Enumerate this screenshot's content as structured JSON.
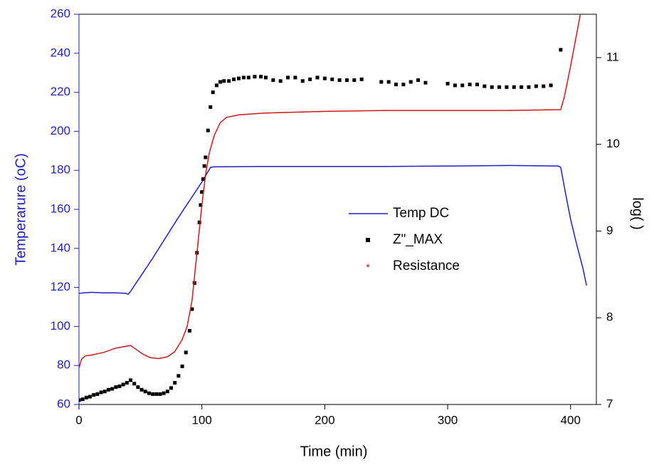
{
  "chart_data": {
    "type": "line",
    "xlabel": "Time (min)",
    "ylabel": "Temperarure (oC)",
    "y2label": "log( )",
    "xlim": [
      0,
      421
    ],
    "xticks": [
      0,
      100,
      200,
      300,
      400
    ],
    "ylim": [
      60,
      260
    ],
    "yticks": [
      60,
      80,
      100,
      120,
      140,
      160,
      180,
      200,
      220,
      240,
      260
    ],
    "y2lim": [
      7,
      11.5
    ],
    "y2ticks": [
      7,
      8,
      9,
      10,
      11
    ],
    "legend": "center right",
    "grid": false,
    "series": [
      {
        "name": "Temp DC",
        "color": "#1f1fc8",
        "style": "line",
        "x": [
          0,
          10,
          20,
          30,
          38,
          40,
          42,
          60,
          80,
          100,
          107,
          110,
          150,
          200,
          250,
          300,
          350,
          390,
          392,
          396,
          400,
          405,
          410,
          413
        ],
        "values": [
          117,
          117.5,
          117.2,
          117.2,
          117,
          116.5,
          118,
          135,
          155,
          174,
          181.5,
          181.8,
          182,
          182,
          182,
          182.2,
          182.5,
          182.2,
          181.5,
          168,
          155,
          142,
          130,
          121
        ]
      },
      {
        "name": "Z\"_MAX",
        "color": "#000000",
        "style": "markers",
        "axis": "y2",
        "x": [
          0,
          3,
          6,
          9,
          12,
          15,
          18,
          21,
          24,
          27,
          30,
          33,
          36,
          39,
          42,
          45,
          48,
          51,
          54,
          57,
          60,
          63,
          66,
          69,
          72,
          75,
          78,
          81,
          84,
          87,
          90,
          92,
          94,
          96,
          98,
          99,
          100,
          101,
          102,
          103,
          105,
          107,
          109,
          112,
          115,
          118,
          122,
          126,
          130,
          134,
          138,
          143,
          148,
          152,
          158,
          164,
          170,
          176,
          182,
          188,
          194,
          200,
          206,
          212,
          218,
          224,
          230,
          246,
          252,
          258,
          264,
          270,
          276,
          282,
          300,
          306,
          312,
          318,
          324,
          330,
          336,
          342,
          348,
          354,
          360,
          366,
          372,
          378,
          384,
          392
        ],
        "values": [
          7.05,
          7.06,
          7.08,
          7.09,
          7.11,
          7.12,
          7.14,
          7.15,
          7.17,
          7.18,
          7.2,
          7.21,
          7.23,
          7.25,
          7.28,
          7.24,
          7.2,
          7.17,
          7.15,
          7.13,
          7.12,
          7.12,
          7.12,
          7.13,
          7.15,
          7.19,
          7.25,
          7.33,
          7.44,
          7.6,
          7.85,
          8.1,
          8.4,
          8.75,
          9.1,
          9.3,
          9.45,
          9.6,
          9.75,
          9.85,
          10.16,
          10.43,
          10.6,
          10.68,
          10.72,
          10.73,
          10.73,
          10.75,
          10.76,
          10.77,
          10.77,
          10.78,
          10.78,
          10.77,
          10.74,
          10.73,
          10.77,
          10.77,
          10.73,
          10.75,
          10.77,
          10.76,
          10.75,
          10.74,
          10.74,
          10.74,
          10.75,
          10.72,
          10.72,
          10.69,
          10.69,
          10.72,
          10.74,
          10.71,
          10.7,
          10.68,
          10.68,
          10.69,
          10.69,
          10.67,
          10.66,
          10.66,
          10.66,
          10.66,
          10.66,
          10.66,
          10.67,
          10.67,
          10.68,
          11.09
        ]
      },
      {
        "name": "Resistance",
        "color": "#d01818",
        "style": "line",
        "axis": "y2",
        "x": [
          0,
          2,
          5,
          10,
          20,
          30,
          38,
          42,
          46,
          52,
          58,
          65,
          72,
          78,
          84,
          88,
          92,
          96,
          100,
          103,
          106,
          110,
          115,
          120,
          130,
          150,
          200,
          250,
          300,
          350,
          392,
          395,
          400,
          404,
          408
        ],
        "values": [
          7.42,
          7.52,
          7.56,
          7.57,
          7.6,
          7.65,
          7.67,
          7.68,
          7.64,
          7.58,
          7.54,
          7.53,
          7.55,
          7.61,
          7.75,
          7.9,
          8.2,
          8.75,
          9.3,
          9.65,
          9.9,
          10.1,
          10.25,
          10.31,
          10.34,
          10.36,
          10.38,
          10.39,
          10.39,
          10.39,
          10.4,
          10.55,
          10.9,
          11.2,
          11.5
        ]
      }
    ]
  }
}
